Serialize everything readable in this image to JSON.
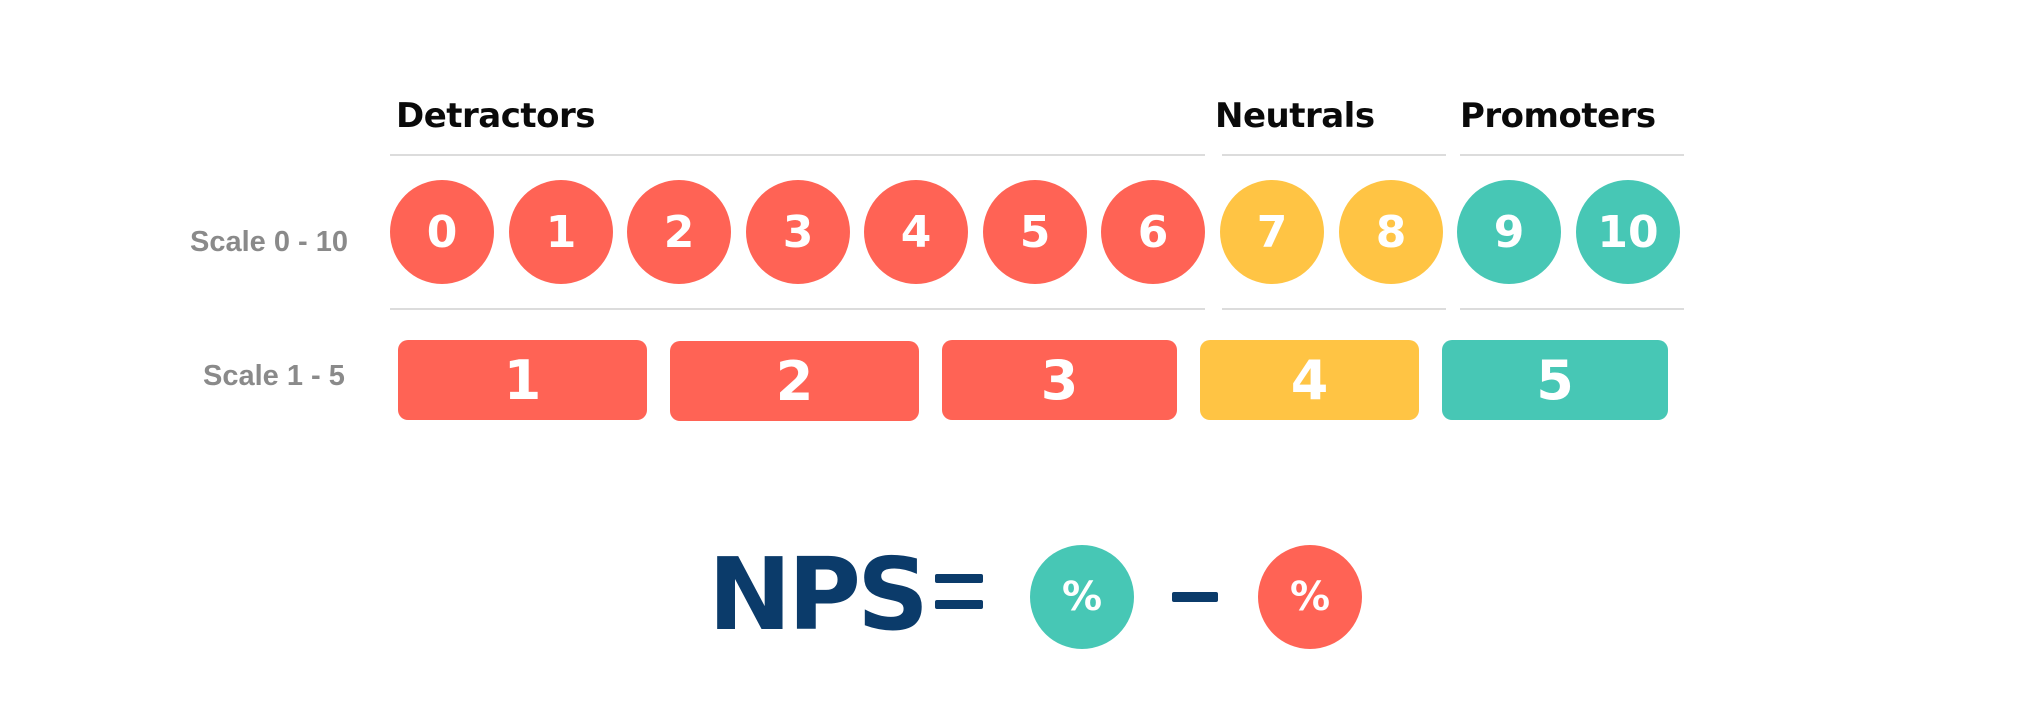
{
  "groups": {
    "detractors": "Detractors",
    "neutrals": "Neutrals",
    "promoters": "Promoters"
  },
  "scale_0_10": {
    "label": "Scale 0 - 10",
    "values": [
      "0",
      "1",
      "2",
      "3",
      "4",
      "5",
      "6",
      "7",
      "8",
      "9",
      "10"
    ]
  },
  "scale_1_5": {
    "label": "Scale 1 - 5",
    "values": [
      "1",
      "2",
      "3",
      "4",
      "5"
    ]
  },
  "formula": {
    "nps": "NPS",
    "promoters_symbol": "%",
    "detractors_symbol": "%"
  },
  "colors": {
    "detractor": "#ff6355",
    "neutral": "#ffc444",
    "promoter": "#47c7b5",
    "formula_text": "#0b3b6a"
  }
}
